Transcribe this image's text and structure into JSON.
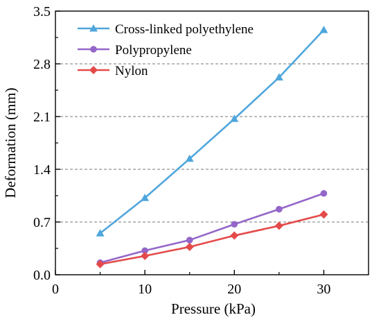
{
  "chart_data": {
    "type": "line",
    "title": "",
    "xlabel": "Pressure (kPa)",
    "ylabel": "Deformation (mm)",
    "xlim": [
      0,
      35
    ],
    "ylim": [
      0,
      3.5
    ],
    "x_ticks": [
      0,
      10,
      20,
      30
    ],
    "y_ticks": [
      0.0,
      0.7,
      1.4,
      2.1,
      2.8,
      3.5
    ],
    "x_tick_labels": [
      "0",
      "10",
      "20",
      "30"
    ],
    "y_tick_labels": [
      "0.0",
      "0.7",
      "1.4",
      "2.1",
      "2.8",
      "3.5"
    ],
    "grid": "horizontal dashed at major y ticks",
    "legend_position": "top-left",
    "x": [
      5,
      10,
      15,
      20,
      25,
      30
    ],
    "series": [
      {
        "name": "Cross-linked polyethylene",
        "color": "#4ea6dc",
        "marker": "triangle",
        "values": [
          0.55,
          1.02,
          1.54,
          2.07,
          2.62,
          3.25
        ]
      },
      {
        "name": "Polypropylene",
        "color": "#9466c9",
        "marker": "circle",
        "values": [
          0.16,
          0.32,
          0.46,
          0.67,
          0.87,
          1.08
        ]
      },
      {
        "name": "Nylon",
        "color": "#e44a4a",
        "marker": "diamond",
        "values": [
          0.14,
          0.25,
          0.37,
          0.52,
          0.65,
          0.8
        ]
      }
    ]
  }
}
